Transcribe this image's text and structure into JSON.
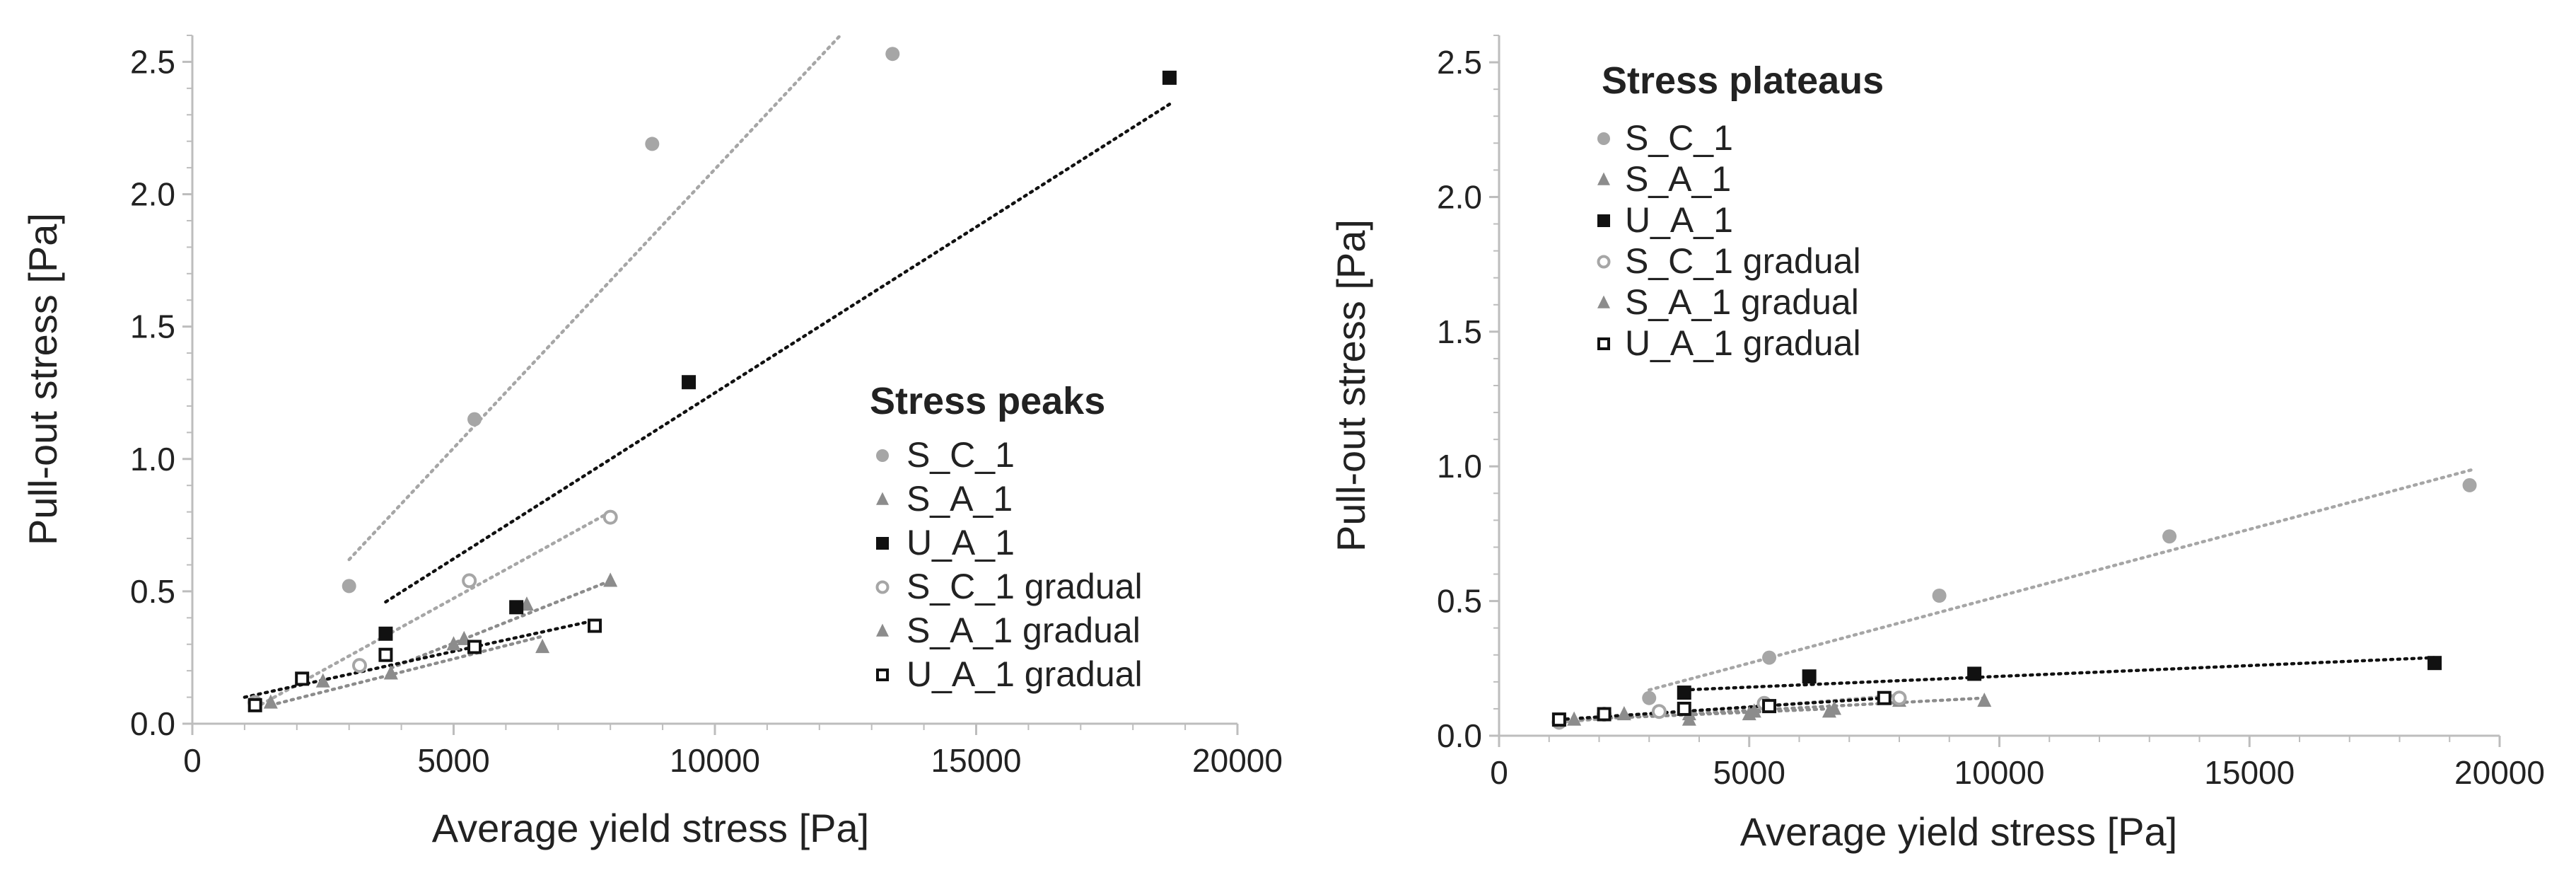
{
  "colors": {
    "light_gray": "#a6a6a6",
    "mid_gray": "#8c8c8c",
    "black": "#111111",
    "axis": "#bdbdbd"
  },
  "chart_data": [
    {
      "type": "scatter",
      "title": "Stress peaks",
      "xlabel": "Average yield stress [Pa]",
      "ylabel": "Pull-out stress [Pa]",
      "xlim": [
        0,
        20000
      ],
      "ylim": [
        0,
        2.6
      ],
      "xticks": [
        0,
        5000,
        10000,
        15000,
        20000
      ],
      "xtick_labels": [
        "0",
        "5000",
        "10000",
        "15000",
        "20000"
      ],
      "yticks": [
        0,
        0.5,
        1.0,
        1.5,
        2.0,
        2.5
      ],
      "ytick_labels": [
        "0.0",
        "0.5",
        "1.0",
        "1.5",
        "2.0",
        "2.5"
      ],
      "legend_position": "center-right",
      "series": [
        {
          "name": "S_C_1",
          "marker": "circle-filled",
          "color": "light_gray",
          "x": [
            3000,
            5400,
            8800,
            13400
          ],
          "y": [
            0.52,
            1.15,
            2.19,
            2.53
          ],
          "trend": [
            [
              3000,
              0.62
            ],
            [
              12400,
              2.6
            ]
          ]
        },
        {
          "name": "S_A_1",
          "marker": "triangle-filled",
          "color": "mid_gray",
          "x": [
            3800,
            5200,
            6400,
            8000
          ],
          "y": [
            0.19,
            0.32,
            0.45,
            0.54
          ],
          "trend": [
            [
              3800,
              0.21
            ],
            [
              8000,
              0.54
            ]
          ]
        },
        {
          "name": "U_A_1",
          "marker": "square-filled",
          "color": "black",
          "x": [
            3700,
            6200,
            9500,
            18700
          ],
          "y": [
            0.34,
            0.44,
            1.29,
            2.44
          ],
          "trend": [
            [
              3700,
              0.46
            ],
            [
              18700,
              2.34
            ]
          ]
        },
        {
          "name": "S_C_1 gradual",
          "marker": "circle-open",
          "color": "light_gray",
          "x": [
            1200,
            3200,
            5300,
            8000
          ],
          "y": [
            0.08,
            0.22,
            0.54,
            0.78
          ],
          "trend": [
            [
              1200,
              0.06
            ],
            [
              8000,
              0.8
            ]
          ]
        },
        {
          "name": "S_A_1 gradual",
          "marker": "triangle-filled",
          "color": "mid_gray",
          "x": [
            1500,
            2500,
            3800,
            5000,
            6700
          ],
          "y": [
            0.08,
            0.16,
            0.19,
            0.3,
            0.29
          ],
          "trend": [
            [
              1500,
              0.07
            ],
            [
              6700,
              0.33
            ]
          ]
        },
        {
          "name": "U_A_1 gradual",
          "marker": "square-open",
          "color": "black",
          "x": [
            1200,
            2100,
            3700,
            5400,
            7700
          ],
          "y": [
            0.07,
            0.17,
            0.26,
            0.29,
            0.37
          ],
          "trend": [
            [
              1000,
              0.1
            ],
            [
              7700,
              0.39
            ]
          ]
        }
      ]
    },
    {
      "type": "scatter",
      "title": "Stress plateaus",
      "xlabel": "Average yield stress [Pa]",
      "ylabel": "Pull-out stress [Pa]",
      "xlim": [
        0,
        20000
      ],
      "ylim": [
        0,
        2.6
      ],
      "xticks": [
        0,
        5000,
        10000,
        15000,
        20000
      ],
      "xtick_labels": [
        "0",
        "5000",
        "10000",
        "15000",
        "20000"
      ],
      "yticks": [
        0,
        0.5,
        1.0,
        1.5,
        2.0,
        2.5
      ],
      "ytick_labels": [
        "0.0",
        "0.5",
        "1.0",
        "1.5",
        "2.0",
        "2.5"
      ],
      "legend_position": "top-left",
      "series": [
        {
          "name": "S_C_1",
          "marker": "circle-filled",
          "color": "light_gray",
          "x": [
            3000,
            5400,
            8800,
            13400,
            19400
          ],
          "y": [
            0.14,
            0.29,
            0.52,
            0.74,
            0.93
          ],
          "trend": [
            [
              3000,
              0.17
            ],
            [
              19500,
              0.99
            ]
          ]
        },
        {
          "name": "S_A_1",
          "marker": "triangle-filled",
          "color": "mid_gray",
          "x": [
            3800,
            5100,
            6700,
            8000,
            9700
          ],
          "y": [
            0.08,
            0.09,
            0.1,
            0.13,
            0.13
          ],
          "trend": [
            [
              3600,
              0.08
            ],
            [
              9700,
              0.14
            ]
          ]
        },
        {
          "name": "U_A_1",
          "marker": "square-filled",
          "color": "black",
          "x": [
            3700,
            6200,
            9500,
            18700
          ],
          "y": [
            0.16,
            0.22,
            0.23,
            0.27
          ],
          "trend": [
            [
              3700,
              0.17
            ],
            [
              18700,
              0.29
            ]
          ]
        },
        {
          "name": "S_C_1 gradual",
          "marker": "circle-open",
          "color": "light_gray",
          "x": [
            1200,
            2100,
            3200,
            5300,
            8000
          ],
          "y": [
            0.05,
            0.08,
            0.09,
            0.12,
            0.14
          ],
          "trend": [
            [
              1200,
              0.05
            ],
            [
              8000,
              0.15
            ]
          ]
        },
        {
          "name": "S_A_1 gradual",
          "marker": "triangle-filled",
          "color": "mid_gray",
          "x": [
            1500,
            2500,
            3800,
            5000,
            6600
          ],
          "y": [
            0.06,
            0.08,
            0.06,
            0.08,
            0.09
          ],
          "trend": [
            [
              1500,
              0.06
            ],
            [
              6600,
              0.1
            ]
          ]
        },
        {
          "name": "U_A_1 gradual",
          "marker": "square-open",
          "color": "black",
          "x": [
            1200,
            2100,
            3700,
            5400,
            7700
          ],
          "y": [
            0.06,
            0.08,
            0.1,
            0.11,
            0.14
          ],
          "trend": [
            [
              1200,
              0.06
            ],
            [
              7700,
              0.14
            ]
          ]
        }
      ]
    }
  ]
}
